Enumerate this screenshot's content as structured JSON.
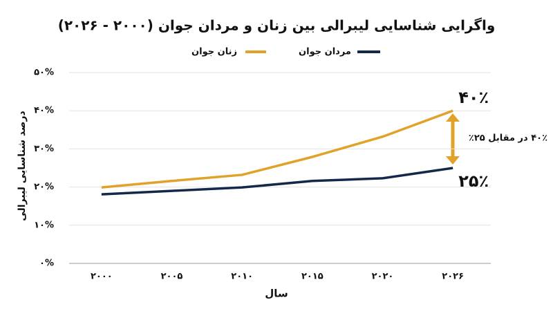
{
  "chart_data": {
    "type": "line",
    "title": "واگرایی شناسایی لیبرالی بین زنان و مردان جوان (۲۰۰۰ - ۲۰۲۶)",
    "x_label": "سال",
    "y_label": "درصد شناسایی لیبرالی",
    "categories": [
      "۲۰۰۰",
      "۲۰۰۵",
      "۲۰۱۰",
      "۲۰۱۵",
      "۲۰۲۰",
      "۲۰۲۶"
    ],
    "series": [
      {
        "name": "زنان جوان",
        "color": "#e0a228",
        "values": [
          19.9,
          21.6,
          23.2,
          27.9,
          33.2,
          40
        ],
        "value_labels": [
          null,
          null,
          null,
          null,
          null,
          "۴۰٪"
        ]
      },
      {
        "name": "مردان جوان",
        "color": "#14284b",
        "values": [
          18.1,
          19,
          19.9,
          21.6,
          22.3,
          25
        ],
        "value_labels": [
          null,
          null,
          null,
          null,
          null,
          "۲۵٪"
        ]
      }
    ],
    "annotation": "۴۰٪ در مقابل ۲۵٪",
    "ylim": [
      0,
      50
    ],
    "yticks": [
      {
        "value": 0,
        "label": "۰%"
      },
      {
        "value": 10,
        "label": "۱۰%"
      },
      {
        "value": 20,
        "label": "۲۰%"
      },
      {
        "value": 30,
        "label": "۳۰%"
      },
      {
        "value": 40,
        "label": "۴۰%"
      },
      {
        "value": 50,
        "label": "۵۰%"
      }
    ],
    "grid": true
  }
}
